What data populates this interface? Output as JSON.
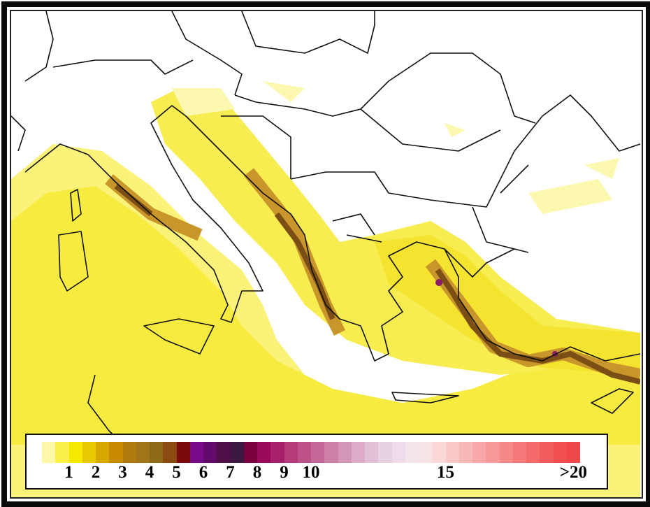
{
  "legend": {
    "labels": [
      {
        "text": "1",
        "bin": 2
      },
      {
        "text": "2",
        "bin": 4
      },
      {
        "text": "3",
        "bin": 6
      },
      {
        "text": "4",
        "bin": 8
      },
      {
        "text": "5",
        "bin": 10
      },
      {
        "text": "6",
        "bin": 12
      },
      {
        "text": "7",
        "bin": 14
      },
      {
        "text": "8",
        "bin": 16
      },
      {
        "text": "9",
        "bin": 18
      },
      {
        "text": "10",
        "bin": 20
      },
      {
        "text": "15",
        "bin": 30
      },
      {
        "text": ">20",
        "bin": 39.5
      }
    ],
    "colors": [
      "#fdf7a8",
      "#fbf04a",
      "#f5ea00",
      "#e8c800",
      "#d8a800",
      "#c88a00",
      "#b07a10",
      "#a07418",
      "#8e6a18",
      "#8a4a10",
      "#7a0a0a",
      "#7a0a8a",
      "#640a6a",
      "#4e1048",
      "#3a1840",
      "#7a0040",
      "#9a0a5a",
      "#a8206a",
      "#b43a7a",
      "#bc5088",
      "#c46898",
      "#cc80a8",
      "#d496b8",
      "#dcacc8",
      "#e2c0d6",
      "#e8d2e2",
      "#eedcea",
      "#f4e4ec",
      "#f8e4e4",
      "#fad8d8",
      "#fac8c8",
      "#f8b8b8",
      "#f8a8a8",
      "#f89898",
      "#f68888",
      "#f47878",
      "#f46a6a",
      "#f25c5c",
      "#f05050",
      "#f04848"
    ]
  },
  "map": {
    "sea_colors": {
      "low": "#fdf8b0",
      "mid": "#f8ee60",
      "high": "#c89a20",
      "peak": "#6a3a10",
      "max": "#8a1a6a"
    }
  }
}
